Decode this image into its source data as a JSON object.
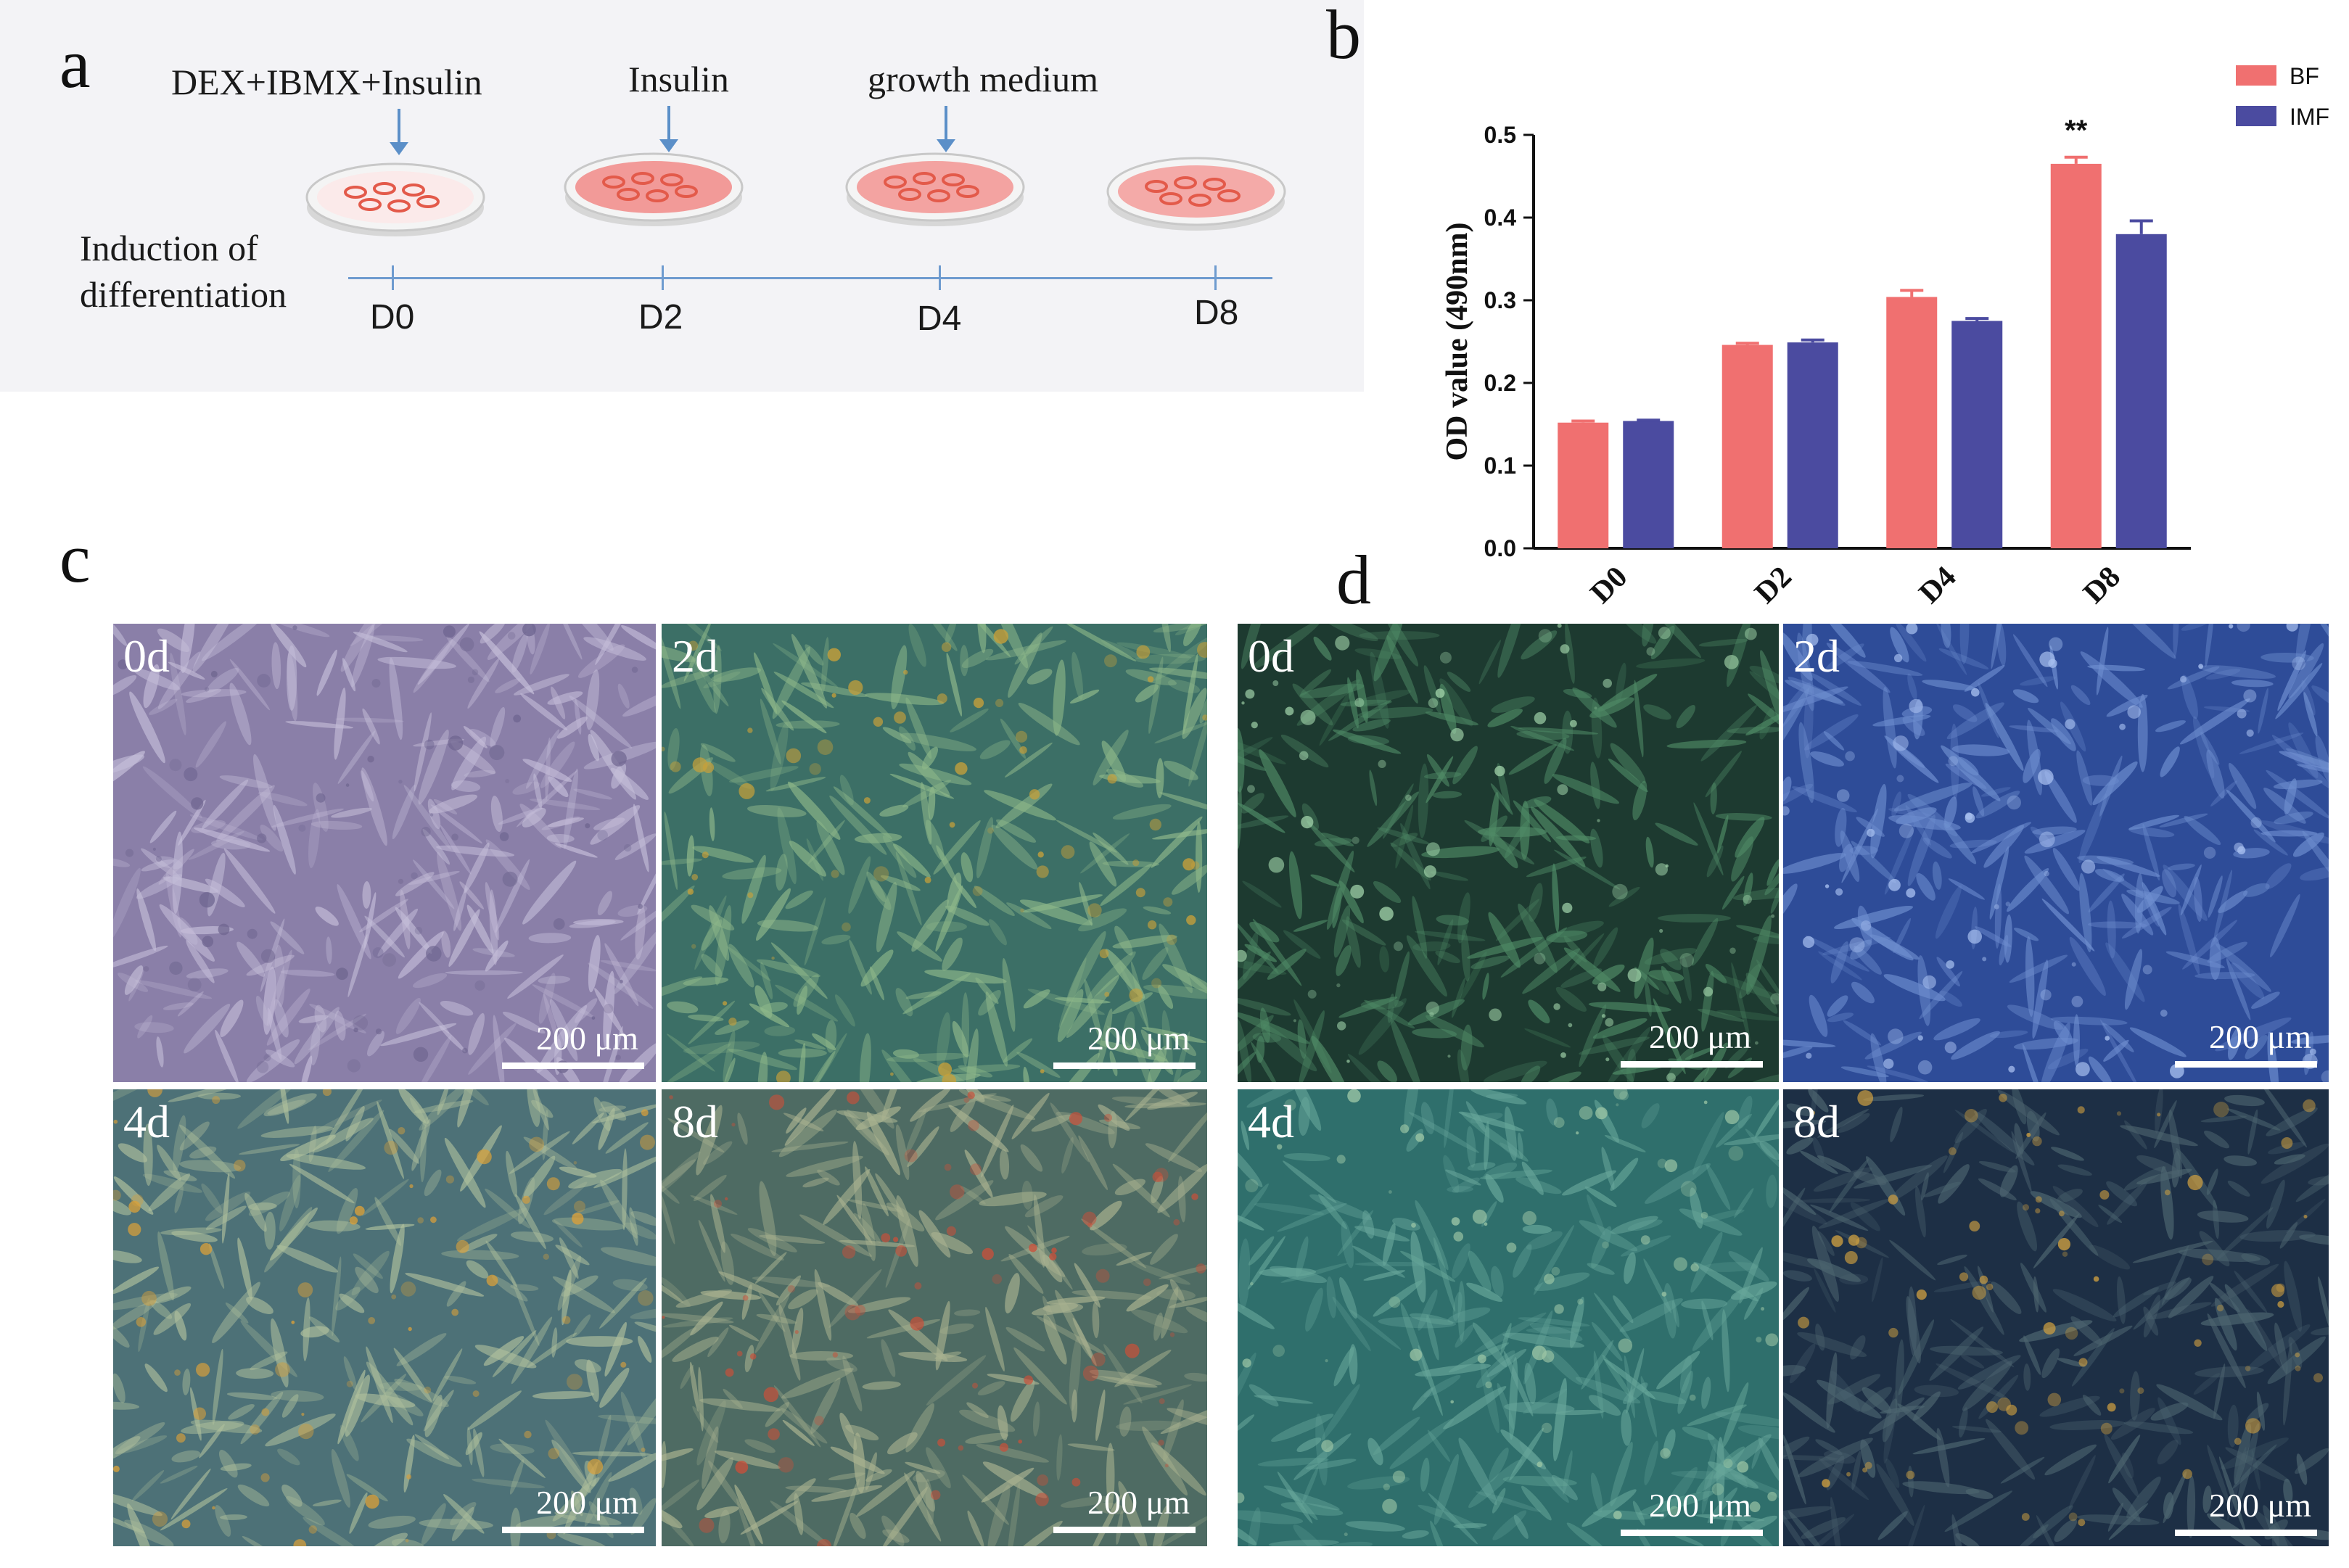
{
  "panels": {
    "a": "a",
    "b": "b",
    "c": "c",
    "d": "d"
  },
  "panel_a": {
    "steps": [
      {
        "label": "DEX+IBMX+Insulin"
      },
      {
        "label": "Insulin"
      },
      {
        "label": "growth medium"
      }
    ],
    "induction_label": "Induction of\ndifferentiation",
    "days": [
      "D0",
      "D2",
      "D4",
      "D8"
    ]
  },
  "chart_data": {
    "type": "bar",
    "title": "",
    "xlabel": "",
    "ylabel": "OD value (490nm)",
    "categories": [
      "D0",
      "D2",
      "D4",
      "D8"
    ],
    "ylim": [
      0,
      0.5
    ],
    "yticks": [
      "0.0",
      "0.1",
      "0.2",
      "0.3",
      "0.4",
      "0.5"
    ],
    "series": [
      {
        "name": "BF",
        "color": "#f07070",
        "values": [
          0.152,
          0.246,
          0.304,
          0.465
        ],
        "errors": [
          0.002,
          0.002,
          0.008,
          0.008
        ]
      },
      {
        "name": "IMF",
        "color": "#4b4ba0",
        "values": [
          0.154,
          0.249,
          0.275,
          0.38
        ],
        "errors": [
          0.001,
          0.003,
          0.003,
          0.016
        ]
      }
    ],
    "annotations": [
      {
        "category": "D8",
        "text": "**"
      }
    ],
    "legend_position": "top-right",
    "grid": false
  },
  "micrographs": {
    "scale_text": "200 μm",
    "panel_c": [
      {
        "label": "0d",
        "palette": [
          "#8a7fa8",
          "#c4bdd8",
          "#6f6690"
        ]
      },
      {
        "label": "2d",
        "palette": [
          "#3c6f66",
          "#8fb88a",
          "#c7a03a"
        ]
      },
      {
        "label": "4d",
        "palette": [
          "#4d7177",
          "#aebf9c",
          "#d9a03a"
        ]
      },
      {
        "label": "8d",
        "palette": [
          "#4e6b63",
          "#a9b290",
          "#c8503a"
        ]
      }
    ],
    "panel_d": [
      {
        "label": "0d",
        "palette": [
          "#1d3a30",
          "#4f8a66",
          "#9fd1a8"
        ]
      },
      {
        "label": "2d",
        "palette": [
          "#2e4c98",
          "#6f8fd0",
          "#a8c0f0"
        ]
      },
      {
        "label": "4d",
        "palette": [
          "#2f6f6c",
          "#67a69a",
          "#9ec7a6"
        ]
      },
      {
        "label": "8d",
        "palette": [
          "#1d2f45",
          "#4d6570",
          "#d0a040"
        ]
      }
    ]
  }
}
